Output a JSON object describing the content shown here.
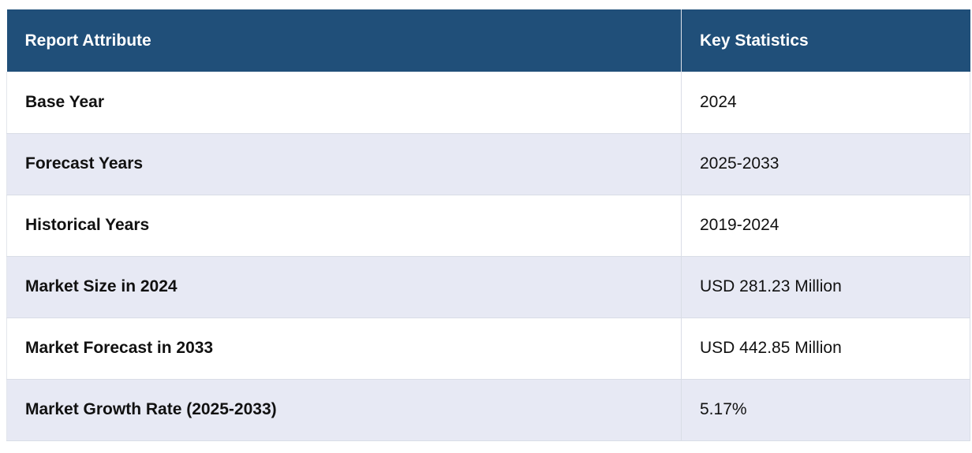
{
  "table": {
    "headers": [
      "Report Attribute",
      "Key Statistics"
    ],
    "rows": [
      [
        "Base Year",
        "2024"
      ],
      [
        "Forecast Years",
        "2025-2033"
      ],
      [
        "Historical Years",
        "2019-2024"
      ],
      [
        "Market Size in 2024",
        "USD 281.23 Million"
      ],
      [
        "Market Forecast in 2033",
        "USD 442.85 Million"
      ],
      [
        "Market Growth Rate (2025-2033)",
        "5.17%"
      ]
    ]
  },
  "colors": {
    "header_bg": "#204f79",
    "header_text": "#ffffff",
    "row_alt_bg": "#e7e9f4",
    "row_bg": "#ffffff"
  }
}
